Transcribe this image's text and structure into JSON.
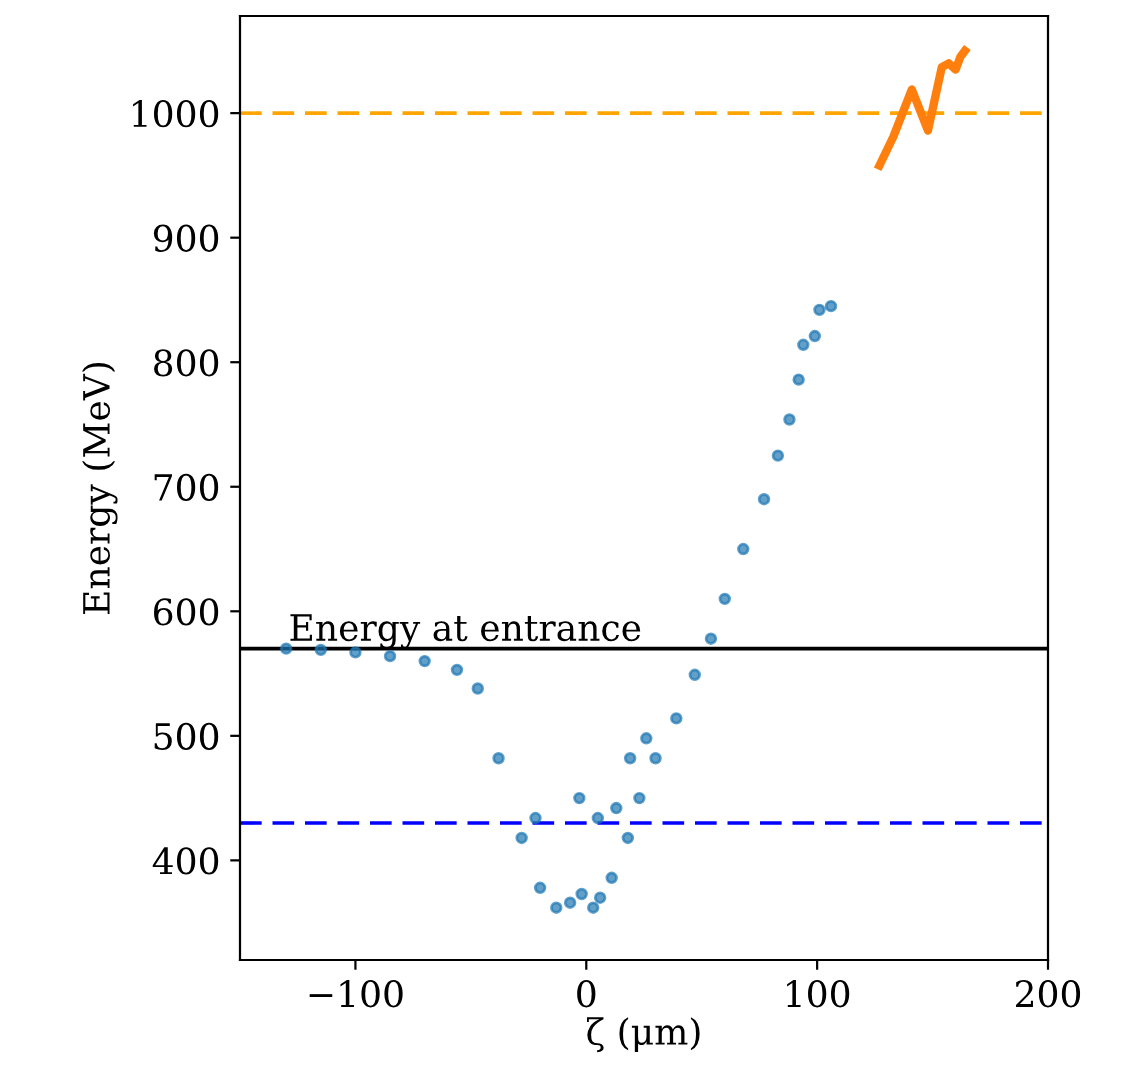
{
  "chart_data": {
    "type": "scatter",
    "xlabel": "ζ (μm)",
    "ylabel": "Energy (MeV)",
    "xlim": [
      -150,
      200
    ],
    "xticks": [
      {
        "value": -100,
        "label": "−100"
      },
      0,
      100,
      200
    ],
    "ylim": [
      320,
      1078
    ],
    "yticks": [
      400,
      500,
      600,
      700,
      800,
      900,
      1000
    ],
    "grid": false,
    "marker": "circle",
    "series": [
      {
        "color": "#1f77b4",
        "x": [
          -130,
          -115,
          -100,
          -85,
          -70,
          -56,
          -47,
          -38,
          -28,
          -20,
          -13,
          -7,
          -2,
          3,
          6,
          11,
          18,
          23,
          30,
          39,
          47,
          54,
          60,
          68,
          77,
          83,
          88,
          92,
          94,
          99,
          101,
          106,
          -22,
          -3,
          5,
          13,
          19,
          26
        ],
        "values": [
          570,
          569,
          567,
          564,
          560,
          553,
          538,
          482,
          418,
          378,
          362,
          366,
          373,
          362,
          370,
          386,
          418,
          450,
          482,
          514,
          549,
          578,
          610,
          650,
          690,
          725,
          754,
          786,
          814,
          821,
          842,
          845,
          434,
          450,
          434,
          442,
          482,
          498
        ]
      },
      {
        "type": "line",
        "color": "#ff7f0e",
        "line_style": "solid",
        "marker": "none",
        "x": [
          127,
          133,
          141,
          148,
          154,
          157,
          160,
          162,
          164
        ],
        "values": [
          958,
          981,
          1019,
          986,
          1037,
          1040,
          1035,
          1045,
          1050
        ]
      }
    ],
    "ref_lines": [
      {
        "axis": "y",
        "value": 1000,
        "color": "#ffa500",
        "line_style": "dashed"
      },
      {
        "axis": "y",
        "value": 570,
        "color": "#000000",
        "line_style": "solid",
        "label": "Energy at entrance"
      },
      {
        "axis": "y",
        "value": 430,
        "color": "#0000ff",
        "line_style": "dashed"
      }
    ]
  }
}
